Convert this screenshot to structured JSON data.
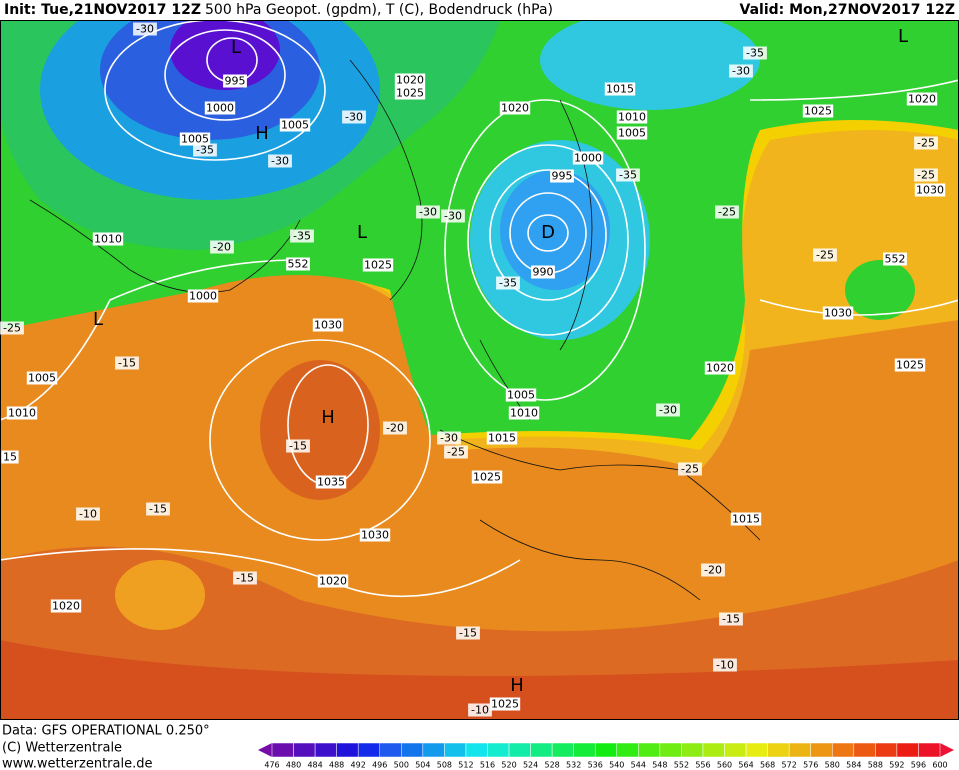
{
  "header": {
    "init": "Init: Tue,21NOV2017 12Z",
    "title": "500 hPa Geopot. (gpdm), T (C), Bodendruck (hPa)",
    "valid": "Valid: Mon,27NOV2017 12Z"
  },
  "isobar_labels": [
    "995",
    "1000",
    "1005",
    "1005",
    "1010",
    "1000",
    "1005",
    "1010",
    "15",
    "1020",
    "1025",
    "1020",
    "1015",
    "1010",
    "1005",
    "1000",
    "995",
    "990",
    "1025",
    "1030",
    "1035",
    "1030",
    "1020",
    "1020",
    "1025",
    "1015",
    "1010",
    "1005",
    "1020",
    "1025",
    "1020",
    "1030",
    "1030",
    "1025",
    "1015",
    "1025",
    "552",
    "552"
  ],
  "temperature_labels": [
    "-30",
    "-35",
    "-30",
    "-30",
    "-35",
    "-20",
    "-25",
    "-15",
    "-15",
    "-20",
    "-25",
    "-30",
    "-15",
    "-10",
    "-15",
    "-15",
    "-10",
    "-35",
    "-30",
    "-30",
    "-35",
    "-25",
    "-35",
    "-30",
    "-25",
    "-25",
    "-25",
    "-30",
    "-25",
    "-20",
    "-15",
    "-10"
  ],
  "centers": [
    "L",
    "H",
    "L",
    "L",
    "D",
    "H",
    "H",
    "L"
  ],
  "footer": {
    "data": "Data: GFS OPERATIONAL 0.250°",
    "copyright": "(C) Wetterzentrale",
    "url": "www.wetterzentrale.de"
  },
  "colorbar": {
    "ticks": [
      476,
      480,
      484,
      488,
      492,
      496,
      500,
      504,
      508,
      512,
      516,
      520,
      524,
      528,
      532,
      536,
      540,
      544,
      548,
      552,
      556,
      560,
      564,
      568,
      572,
      576,
      580,
      584,
      588,
      592,
      596,
      600
    ]
  }
}
